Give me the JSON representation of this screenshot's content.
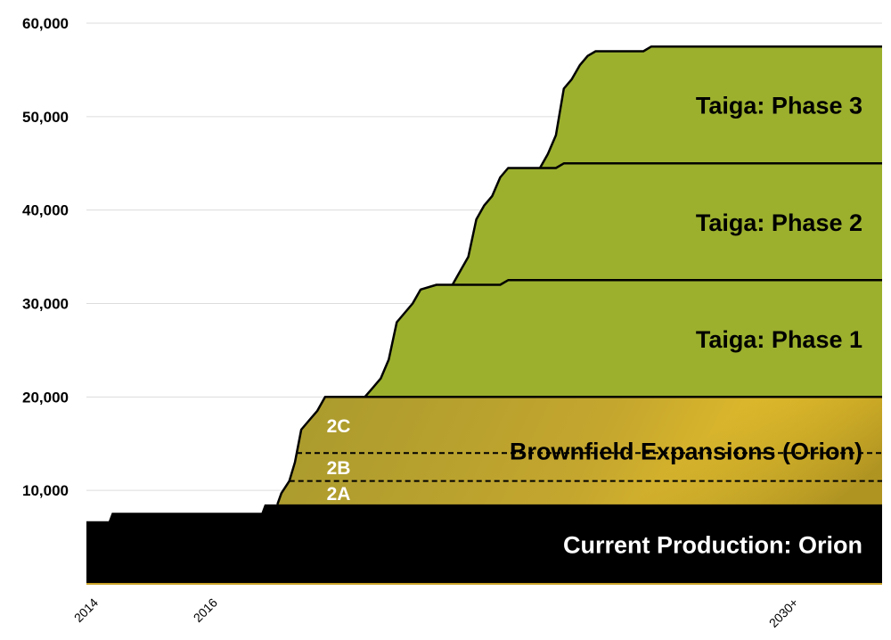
{
  "chart_data": {
    "type": "area",
    "title": "",
    "xlabel": "",
    "ylabel": "",
    "ylim": [
      0,
      60000
    ],
    "y_ticks": [
      {
        "value": 10000,
        "label": "10,000"
      },
      {
        "value": 20000,
        "label": "20,000"
      },
      {
        "value": 30000,
        "label": "30,000"
      },
      {
        "value": 40000,
        "label": "40,000"
      },
      {
        "value": 50000,
        "label": "50,000"
      },
      {
        "value": 60000,
        "label": "60,000"
      }
    ],
    "x_ticks": [
      {
        "value": 0.0,
        "label": "2014"
      },
      {
        "value": 0.15,
        "label": "2016"
      },
      {
        "value": 0.88,
        "label": "2030+"
      }
    ],
    "grid": true,
    "stacked": true,
    "series": [
      {
        "name": "Current Production: Orion",
        "color": "#000000",
        "text_color": "#ffffff",
        "points": [
          [
            0.0,
            6700
          ],
          [
            0.028,
            6700
          ],
          [
            0.032,
            7600
          ],
          [
            0.22,
            7600
          ],
          [
            0.224,
            8500
          ],
          [
            1.0,
            8500
          ]
        ]
      },
      {
        "name": "Brownfield Expansions (Orion)",
        "color": "#b8a030",
        "text_color": "#000000",
        "points": [
          [
            0.24,
            8500
          ],
          [
            0.245,
            9700
          ],
          [
            0.255,
            11000
          ],
          [
            0.262,
            13000
          ],
          [
            0.27,
            16500
          ],
          [
            0.28,
            17500
          ],
          [
            0.29,
            18500
          ],
          [
            0.3,
            20000
          ],
          [
            1.0,
            20000
          ]
        ]
      },
      {
        "name": "Taiga: Phase 1",
        "color": "#9cb02e",
        "text_color": "#000000",
        "points": [
          [
            0.35,
            20000
          ],
          [
            0.36,
            21000
          ],
          [
            0.37,
            22000
          ],
          [
            0.38,
            24000
          ],
          [
            0.39,
            28000
          ],
          [
            0.4,
            29000
          ],
          [
            0.41,
            30000
          ],
          [
            0.42,
            31500
          ],
          [
            0.44,
            32000
          ],
          [
            0.52,
            32000
          ],
          [
            0.53,
            32500
          ],
          [
            1.0,
            32500
          ]
        ]
      },
      {
        "name": "Taiga: Phase 2",
        "color": "#9cb02e",
        "text_color": "#000000",
        "points": [
          [
            0.46,
            32000
          ],
          [
            0.47,
            33500
          ],
          [
            0.48,
            35000
          ],
          [
            0.49,
            39000
          ],
          [
            0.5,
            40500
          ],
          [
            0.51,
            41500
          ],
          [
            0.52,
            43500
          ],
          [
            0.53,
            44500
          ],
          [
            0.59,
            44500
          ],
          [
            0.6,
            45000
          ],
          [
            1.0,
            45000
          ]
        ]
      },
      {
        "name": "Taiga: Phase 3",
        "color": "#9cb02e",
        "text_color": "#000000",
        "points": [
          [
            0.57,
            44500
          ],
          [
            0.58,
            46000
          ],
          [
            0.59,
            48000
          ],
          [
            0.6,
            53000
          ],
          [
            0.61,
            54000
          ],
          [
            0.62,
            55500
          ],
          [
            0.63,
            56500
          ],
          [
            0.64,
            57000
          ],
          [
            0.7,
            57000
          ],
          [
            0.71,
            57500
          ],
          [
            1.0,
            57500
          ]
        ]
      }
    ],
    "sub_segments": [
      {
        "name": "2A",
        "upper": 11000
      },
      {
        "name": "2B",
        "upper": 14000
      },
      {
        "name": "2C",
        "upper": 20000
      }
    ],
    "band_mid_values": [
      4250,
      14250,
      26250,
      38750,
      51250
    ]
  }
}
